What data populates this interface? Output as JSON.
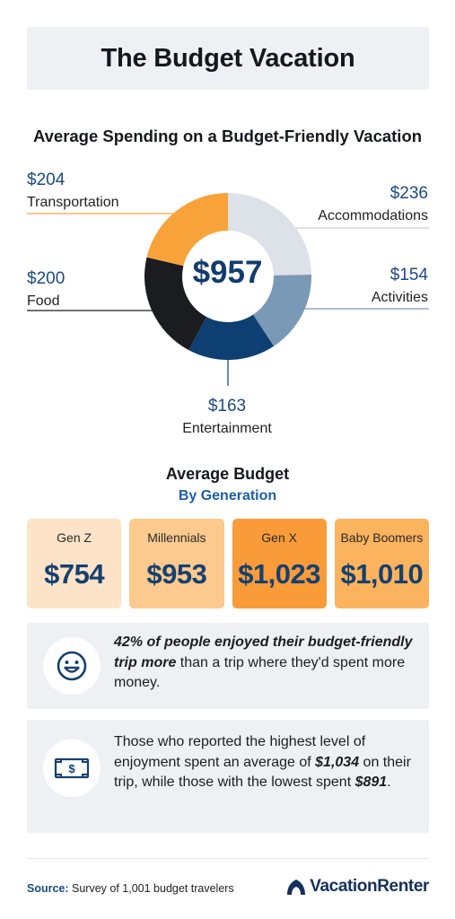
{
  "header": {
    "title": "The Budget Vacation"
  },
  "chart_data": {
    "type": "pie",
    "title": "Average Spending on a Budget-Friendly Vacation",
    "center_label": "$957",
    "slices": [
      {
        "label": "Accommodations",
        "amount": "$236",
        "value": 236,
        "color": "#dde1e8"
      },
      {
        "label": "Activities",
        "amount": "$154",
        "value": 154,
        "color": "#7a99b6"
      },
      {
        "label": "Entertainment",
        "amount": "$163",
        "value": 163,
        "color": "#0e3f72"
      },
      {
        "label": "Food",
        "amount": "$200",
        "value": 200,
        "color": "#1b1c20"
      },
      {
        "label": "Transportation",
        "amount": "$204",
        "value": 204,
        "color": "#f8a33a"
      }
    ]
  },
  "generations": {
    "title": "Average Budget",
    "subtitle": "By Generation",
    "items": [
      {
        "name": "Gen Z",
        "value": "$754",
        "color": "#fde3c8"
      },
      {
        "name": "Millennials",
        "value": "$953",
        "color": "#fcc98e"
      },
      {
        "name": "Gen X",
        "value": "$1,023",
        "color": "#fa9b3a"
      },
      {
        "name": "Baby Boomers",
        "value": "$1,010",
        "color": "#fcb35e"
      }
    ]
  },
  "stats": {
    "enjoyment": {
      "icon": "smiley-icon",
      "bold": "42% of people enjoyed their budget-friendly trip more",
      "rest": " than a trip where they'd spent more money."
    },
    "spending": {
      "icon": "money-icon",
      "part1": "Those who reported the highest level of enjoyment spent an average of ",
      "amount1": "$1,034",
      "part2": " on their trip, while those with the lowest spent ",
      "amount2": "$891",
      "part3": "."
    }
  },
  "footer": {
    "source_label": "Source:",
    "source_text": " Survey of 1,001 budget travelers",
    "brand": "VacationRenter"
  }
}
